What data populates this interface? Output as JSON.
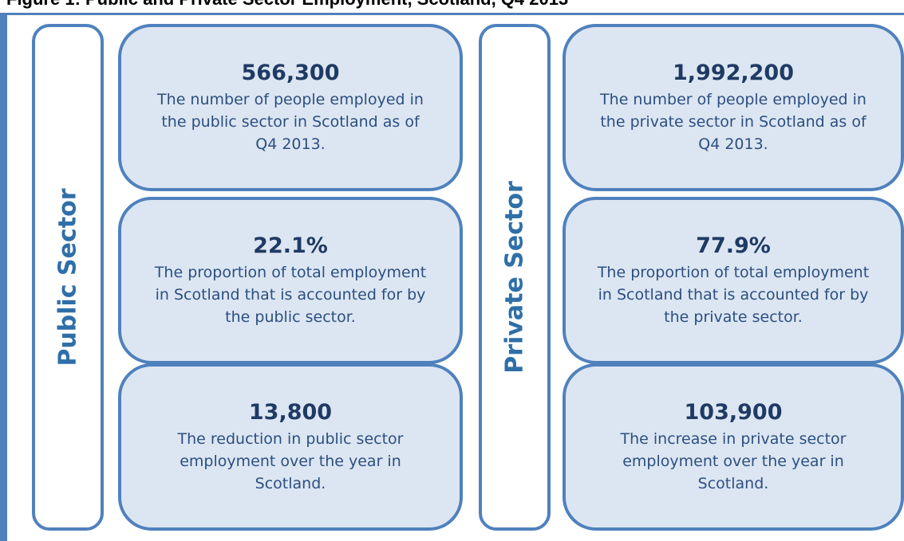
{
  "title": "Figure 1: Public and Private Sector Employment, Scotland, Q4 2013",
  "sectors": [
    {
      "label": "Public Sector",
      "boxes": [
        {
          "value": "566,300",
          "text": "The number of people employed in the public sector in Scotland as of Q4 2013."
        },
        {
          "value": "22.1%",
          "text": "The proportion of total employment in Scotland that is accounted for by the public sector."
        },
        {
          "value": "13,800",
          "text": "The reduction in public sector employment over the year in Scotland."
        }
      ]
    },
    {
      "label": "Private Sector",
      "boxes": [
        {
          "value": "1,992,200",
          "text": "The number of people employed in the private sector in Scotland as of Q4 2013."
        },
        {
          "value": "77.9%",
          "text": "The proportion of total employment in Scotland that is accounted for by the private sector."
        },
        {
          "value": "103,900",
          "text": "The increase in private sector employment over the year in Scotland."
        }
      ]
    }
  ]
}
